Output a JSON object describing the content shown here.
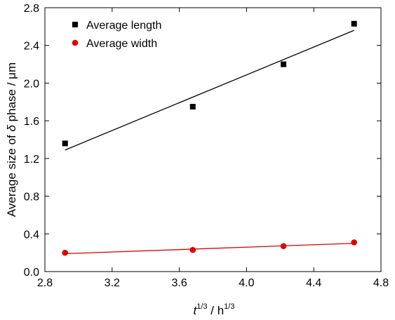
{
  "chart_data": {
    "type": "scatter",
    "xlabel": {
      "var": "t",
      "exp": "1/3",
      "sep": " / h",
      "exp2": "1/3"
    },
    "ylabel": {
      "prefix": "Average size of ",
      "symbol": "δ",
      "suffix": " phase / μm"
    },
    "xlim": [
      2.8,
      4.8
    ],
    "ylim": [
      0.0,
      2.8
    ],
    "xticks": [
      2.8,
      3.2,
      3.6,
      4.0,
      4.4,
      4.8
    ],
    "xtick_labels": [
      "2.8",
      "3.2",
      "3.6",
      "4.0",
      "4.4",
      "4.8"
    ],
    "yticks": [
      0.0,
      0.4,
      0.8,
      1.2,
      1.6,
      2.0,
      2.4,
      2.8
    ],
    "ytick_labels": [
      "0.0",
      "0.4",
      "0.8",
      "1.2",
      "1.6",
      "2.0",
      "2.4",
      "2.8"
    ],
    "grid": false,
    "legend_position": "top-left",
    "series": [
      {
        "name": "Average length",
        "marker": "square",
        "color": "#000000",
        "x": [
          2.92,
          3.68,
          4.22,
          4.64
        ],
        "y": [
          1.36,
          1.75,
          2.2,
          2.63
        ],
        "fit": {
          "x": [
            2.92,
            4.64
          ],
          "y": [
            1.29,
            2.56
          ]
        }
      },
      {
        "name": "Average width",
        "marker": "circle",
        "color": "#e00000",
        "x": [
          2.92,
          3.68,
          4.22,
          4.64
        ],
        "y": [
          0.2,
          0.23,
          0.27,
          0.31
        ],
        "fit": {
          "x": [
            2.92,
            4.64
          ],
          "y": [
            0.19,
            0.3
          ]
        }
      }
    ]
  }
}
